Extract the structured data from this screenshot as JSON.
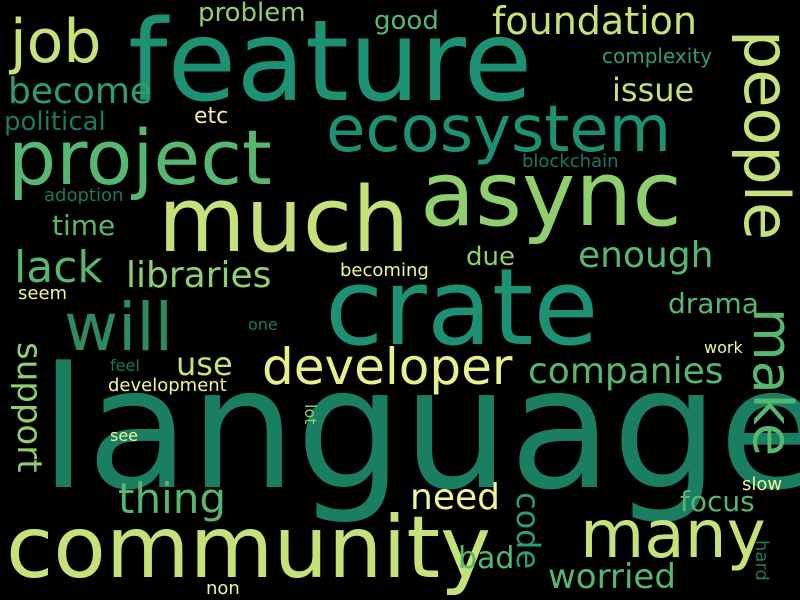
{
  "palette": {
    "background": "#000000",
    "dark_green": "#1a7a5b",
    "teal": "#1c9173",
    "green": "#2e9e70",
    "mid_green": "#56b870",
    "light_green": "#8fcf6e",
    "lime": "#c5e27a",
    "pale_yellow": "#f2f59a"
  },
  "words": [
    {
      "text": "language"
    },
    {
      "text": "feature"
    },
    {
      "text": "crate"
    },
    {
      "text": "community"
    },
    {
      "text": "async"
    },
    {
      "text": "much"
    },
    {
      "text": "project"
    },
    {
      "text": "ecosystem"
    },
    {
      "text": "people"
    },
    {
      "text": "job"
    },
    {
      "text": "will"
    },
    {
      "text": "many"
    },
    {
      "text": "developer"
    },
    {
      "text": "make"
    },
    {
      "text": "foundation"
    },
    {
      "text": "thing"
    },
    {
      "text": "lack"
    },
    {
      "text": "libraries"
    },
    {
      "text": "companies"
    },
    {
      "text": "support"
    },
    {
      "text": "become"
    },
    {
      "text": "enough"
    },
    {
      "text": "need"
    },
    {
      "text": "worried"
    },
    {
      "text": "code"
    },
    {
      "text": "use"
    },
    {
      "text": "issue"
    },
    {
      "text": "drama"
    },
    {
      "text": "bad"
    },
    {
      "text": "focus"
    },
    {
      "text": "time"
    },
    {
      "text": "problem"
    },
    {
      "text": "political"
    },
    {
      "text": "good"
    },
    {
      "text": "due"
    },
    {
      "text": "etc"
    },
    {
      "text": "complexity"
    },
    {
      "text": "blockchain"
    },
    {
      "text": "adoption"
    },
    {
      "text": "becoming"
    },
    {
      "text": "seem"
    },
    {
      "text": "one"
    },
    {
      "text": "feel"
    },
    {
      "text": "development"
    },
    {
      "text": "work"
    },
    {
      "text": "lot"
    },
    {
      "text": "see"
    },
    {
      "text": "slow"
    },
    {
      "text": "hard"
    },
    {
      "text": "non"
    }
  ]
}
